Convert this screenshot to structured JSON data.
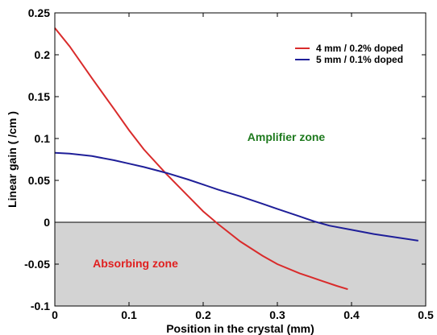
{
  "chart_data": {
    "type": "line",
    "xlabel": "Position in the crystal (mm)",
    "ylabel": "Linear gain ( /cm )",
    "xlim": [
      0,
      0.5
    ],
    "ylim": [
      -0.1,
      0.25
    ],
    "x_ticks": [
      "0",
      "0.1",
      "0.2",
      "0.3",
      "0.4",
      "0.5"
    ],
    "y_ticks": [
      "0.25",
      "0.2",
      "0.15",
      "0.1",
      "0.05",
      "0",
      "-0.05",
      "-0.1"
    ],
    "legend_position": "top-right",
    "series": [
      {
        "name": "4 mm / 0.2% doped",
        "color": "#d92b2b",
        "x": [
          0,
          0.02,
          0.05,
          0.08,
          0.1,
          0.12,
          0.15,
          0.18,
          0.2,
          0.22,
          0.25,
          0.28,
          0.3,
          0.33,
          0.36,
          0.38,
          0.395
        ],
        "y": [
          0.232,
          0.21,
          0.172,
          0.135,
          0.11,
          0.087,
          0.058,
          0.031,
          0.013,
          -0.002,
          -0.023,
          -0.04,
          -0.05,
          -0.061,
          -0.07,
          -0.076,
          -0.08
        ]
      },
      {
        "name": "5 mm / 0.1% doped",
        "color": "#1f1f99",
        "x": [
          0,
          0.02,
          0.05,
          0.08,
          0.1,
          0.12,
          0.15,
          0.18,
          0.2,
          0.22,
          0.25,
          0.28,
          0.3,
          0.33,
          0.35,
          0.37,
          0.4,
          0.43,
          0.46,
          0.49
        ],
        "y": [
          0.083,
          0.082,
          0.079,
          0.074,
          0.07,
          0.066,
          0.059,
          0.051,
          0.045,
          0.039,
          0.031,
          0.022,
          0.016,
          0.007,
          0.001,
          -0.004,
          -0.009,
          -0.014,
          -0.018,
          -0.022
        ]
      }
    ],
    "annotations": [
      {
        "text": "Amplifier zone",
        "color": "#1e7a1e"
      },
      {
        "text": "Absorbing zone",
        "color": "#e02020"
      }
    ],
    "shaded_region": {
      "y_from": -0.1,
      "y_to": 0,
      "color": "#d3d3d3"
    },
    "grid": false
  }
}
